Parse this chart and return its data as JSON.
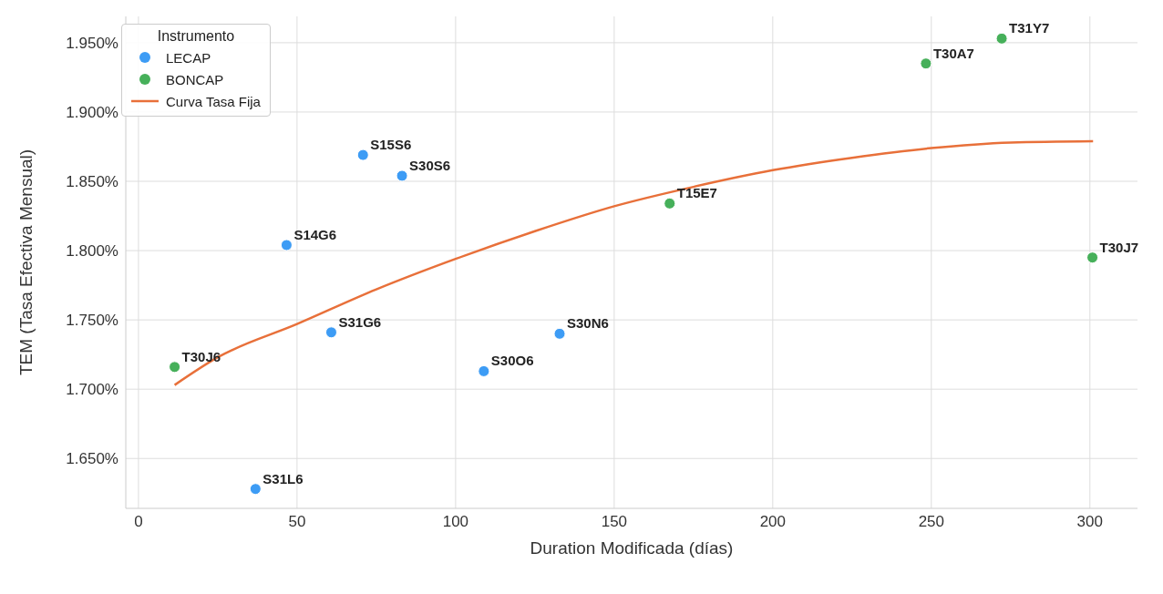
{
  "chart_data": {
    "type": "scatter",
    "xlabel": "Duration Modificada (días)",
    "ylabel": "TEM (Tasa Efectiva Mensual)",
    "legend_title": "Instrumento",
    "legend": "top left",
    "grid": true,
    "marker": "circle",
    "xlim": [
      -4,
      315
    ],
    "xticks": [
      0,
      50,
      100,
      150,
      200,
      250,
      300
    ],
    "ylim": [
      1.614,
      1.969
    ],
    "yticks": [
      {
        "value": 1.65,
        "label": "1.650%"
      },
      {
        "value": 1.7,
        "label": "1.700%"
      },
      {
        "value": 1.75,
        "label": "1.750%"
      },
      {
        "value": 1.8,
        "label": "1.800%"
      },
      {
        "value": 1.85,
        "label": "1.850%"
      },
      {
        "value": 1.9,
        "label": "1.900%"
      },
      {
        "value": 1.95,
        "label": "1.950%"
      }
    ],
    "series": [
      {
        "name": "LECAP",
        "color": "#3d9cf5",
        "x": [
          70.8,
          83.1,
          46.7,
          60.8,
          108.9,
          132.8,
          36.9
        ],
        "values": [
          1.869,
          1.854,
          1.804,
          1.741,
          1.713,
          1.74,
          1.628
        ]
      },
      {
        "name": "BONCAP",
        "color": "#46b05a",
        "x": [
          11.4,
          167.5,
          248.3,
          272.2,
          300.8
        ],
        "values": [
          1.716,
          1.834,
          1.935,
          1.953,
          1.795
        ]
      },
      {
        "name": "Curva Tasa Fija",
        "type": "line",
        "color": "#e8703a",
        "line_style": "solid",
        "marker": "none",
        "x": [
          11.4,
          25,
          50,
          75,
          100,
          125,
          150,
          175,
          200,
          225,
          250,
          275,
          301
        ],
        "values": [
          1.703,
          1.723,
          1.747,
          1.772,
          1.794,
          1.814,
          1.832,
          1.846,
          1.858,
          1.867,
          1.874,
          1.878,
          1.879
        ]
      }
    ],
    "annotations": [
      {
        "text": "S15S6",
        "x": 70.8,
        "y": 1.869
      },
      {
        "text": "S30S6",
        "x": 83.1,
        "y": 1.854
      },
      {
        "text": "S14G6",
        "x": 46.7,
        "y": 1.804
      },
      {
        "text": "S31G6",
        "x": 60.8,
        "y": 1.741
      },
      {
        "text": "S30O6",
        "x": 108.9,
        "y": 1.713
      },
      {
        "text": "S30N6",
        "x": 132.8,
        "y": 1.74
      },
      {
        "text": "S31L6",
        "x": 36.9,
        "y": 1.628
      },
      {
        "text": "T30J6",
        "x": 11.4,
        "y": 1.716
      },
      {
        "text": "T15E7",
        "x": 167.5,
        "y": 1.834
      },
      {
        "text": "T30A7",
        "x": 248.3,
        "y": 1.935
      },
      {
        "text": "T31Y7",
        "x": 272.2,
        "y": 1.953
      },
      {
        "text": "T30J7",
        "x": 300.8,
        "y": 1.795
      }
    ]
  }
}
